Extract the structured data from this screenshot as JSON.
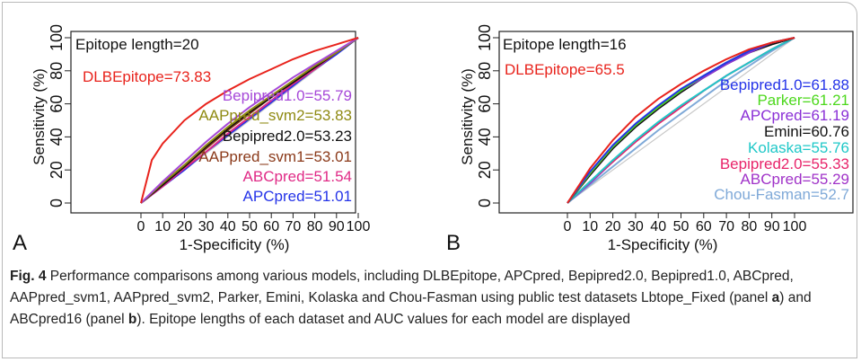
{
  "figure": {
    "caption": {
      "label": "Fig. 4",
      "parts": [
        " Performance comparisons among various models, including DLBEpitope, APCpred, Bepipred2.0, Bepipred1.0, ABCpred, AAPpred_svm1, AAPpred_svm2, Parker, Emini, Kolaska and Chou-Fasman using public test datasets Lbtope_Fixed (panel ",
        "a",
        ") and ABCpred16 (panel ",
        "b",
        "). Epitope lengths of each dataset and AUC values for each model are displayed"
      ]
    }
  },
  "chart_data": [
    {
      "type": "line",
      "panel_label": "A",
      "title": "Epitope length=20",
      "xlabel": "1-Specificity (%)",
      "ylabel": "Sensitivity (%)",
      "xlim": [
        0,
        100
      ],
      "ylim": [
        0,
        100
      ],
      "xticks": [
        0,
        10,
        20,
        30,
        40,
        50,
        60,
        70,
        80,
        90,
        100
      ],
      "yticks": [
        0,
        20,
        40,
        60,
        80,
        100
      ],
      "grid": false,
      "reference_diagonal": true,
      "series": [
        {
          "name": "DLBEpitope=73.83",
          "color": "#e8231c",
          "x": [
            0,
            5,
            10,
            20,
            30,
            40,
            50,
            60,
            70,
            80,
            90,
            100
          ],
          "y": [
            0,
            26,
            36,
            50,
            60,
            68,
            75,
            81,
            87,
            92,
            96,
            100
          ]
        },
        {
          "name": "Bepipred1.0=55.79",
          "color": "#a648d8",
          "x": [
            0,
            10,
            20,
            30,
            40,
            50,
            60,
            70,
            80,
            90,
            100
          ],
          "y": [
            0,
            13,
            25,
            37,
            48,
            58,
            67,
            76,
            84,
            92,
            100
          ]
        },
        {
          "name": "AAPpred_svm2=53.83",
          "color": "#8f8a12",
          "x": [
            0,
            10,
            20,
            30,
            40,
            50,
            60,
            70,
            80,
            90,
            100
          ],
          "y": [
            0,
            12,
            23,
            35,
            46,
            56,
            65,
            74,
            83,
            91,
            100
          ]
        },
        {
          "name": "Bepipred2.0=53.23",
          "color": "#111111",
          "x": [
            0,
            10,
            20,
            30,
            40,
            50,
            60,
            70,
            80,
            90,
            100
          ],
          "y": [
            0,
            11,
            22,
            34,
            45,
            55,
            64,
            73,
            82,
            91,
            100
          ]
        },
        {
          "name": "AAPpred_svm1=53.01",
          "color": "#8b3a1a",
          "x": [
            0,
            10,
            20,
            30,
            40,
            50,
            60,
            70,
            80,
            90,
            100
          ],
          "y": [
            0,
            11,
            22,
            33,
            44,
            54,
            64,
            73,
            82,
            91,
            100
          ]
        },
        {
          "name": "ABCpred=51.54",
          "color": "#e02a86",
          "x": [
            0,
            10,
            20,
            30,
            40,
            50,
            60,
            70,
            80,
            90,
            100
          ],
          "y": [
            0,
            10,
            21,
            31,
            42,
            52,
            62,
            72,
            81,
            91,
            100
          ]
        },
        {
          "name": "APCpred=51.01",
          "color": "#2433e8",
          "x": [
            0,
            10,
            20,
            30,
            40,
            50,
            60,
            70,
            80,
            90,
            100
          ],
          "y": [
            0,
            10,
            20,
            31,
            41,
            51,
            61,
            71,
            81,
            90,
            100
          ]
        }
      ]
    },
    {
      "type": "line",
      "panel_label": "B",
      "title": "Epitope length=16",
      "xlabel": "1-Specificity (%)",
      "ylabel": "Sensitivity (%)",
      "xlim": [
        0,
        100
      ],
      "ylim": [
        0,
        100
      ],
      "xticks": [
        0,
        10,
        20,
        30,
        40,
        50,
        60,
        70,
        80,
        90,
        100
      ],
      "yticks": [
        0,
        20,
        40,
        60,
        80,
        100
      ],
      "grid": false,
      "reference_diagonal": true,
      "series": [
        {
          "name": "DLBEpitope=65.5",
          "color": "#e8231c",
          "x": [
            0,
            10,
            20,
            30,
            40,
            50,
            60,
            70,
            80,
            90,
            100
          ],
          "y": [
            0,
            21,
            38,
            52,
            63,
            72,
            80,
            87,
            93,
            97,
            100
          ]
        },
        {
          "name": "Bepipred1.0=61.88",
          "color": "#2433e8",
          "x": [
            0,
            10,
            20,
            30,
            40,
            50,
            60,
            70,
            80,
            90,
            100
          ],
          "y": [
            0,
            19,
            35,
            48,
            59,
            69,
            77,
            85,
            92,
            97,
            100
          ]
        },
        {
          "name": "Parker=61.21",
          "color": "#4cd81c",
          "x": [
            0,
            10,
            20,
            30,
            40,
            50,
            60,
            70,
            80,
            90,
            100
          ],
          "y": [
            0,
            18,
            34,
            47,
            58,
            68,
            77,
            85,
            92,
            97,
            100
          ]
        },
        {
          "name": "APCpred=61.19",
          "color": "#8a2fd6",
          "x": [
            0,
            10,
            20,
            30,
            40,
            50,
            60,
            70,
            80,
            90,
            100
          ],
          "y": [
            0,
            18,
            34,
            47,
            58,
            68,
            76,
            84,
            91,
            97,
            100
          ]
        },
        {
          "name": "Emini=60.76",
          "color": "#111111",
          "x": [
            0,
            10,
            20,
            30,
            40,
            50,
            60,
            70,
            80,
            90,
            100
          ],
          "y": [
            0,
            17,
            33,
            46,
            57,
            67,
            76,
            84,
            91,
            96,
            100
          ]
        },
        {
          "name": "Kolaska=55.76",
          "color": "#1fc8c8",
          "x": [
            0,
            10,
            20,
            30,
            40,
            50,
            60,
            70,
            80,
            90,
            100
          ],
          "y": [
            0,
            13,
            26,
            38,
            49,
            59,
            68,
            77,
            85,
            93,
            100
          ]
        },
        {
          "name": "Bepipred2.0=55.33",
          "color": "#e8246a",
          "x": [
            0,
            10,
            20,
            30,
            40,
            50,
            60,
            70,
            80,
            90,
            100
          ],
          "y": [
            0,
            13,
            25,
            37,
            48,
            58,
            68,
            77,
            85,
            93,
            100
          ]
        },
        {
          "name": "ABCpred=55.29",
          "color": "#a032c8",
          "x": [
            0,
            10,
            20,
            30,
            40,
            50,
            60,
            70,
            80,
            90,
            100
          ],
          "y": [
            0,
            12,
            25,
            37,
            48,
            58,
            68,
            77,
            85,
            93,
            100
          ]
        },
        {
          "name": "Chou-Fasman=52.7",
          "color": "#7fa9d8",
          "x": [
            0,
            10,
            20,
            30,
            40,
            50,
            60,
            70,
            80,
            90,
            100
          ],
          "y": [
            0,
            11,
            22,
            33,
            44,
            54,
            64,
            74,
            83,
            92,
            100
          ]
        }
      ]
    }
  ]
}
